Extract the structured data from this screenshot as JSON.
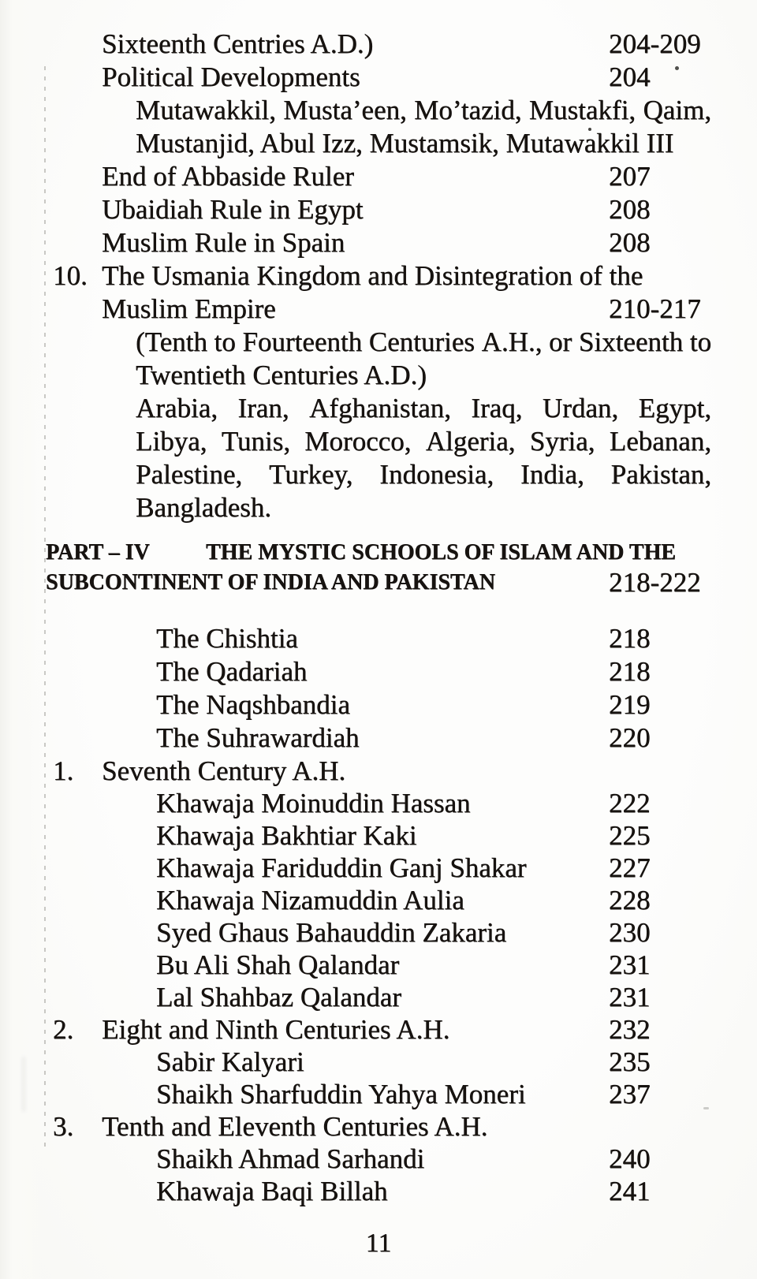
{
  "colors": {
    "ink": "#171310",
    "paper": "#fcfcfa",
    "margin_rule": "rgba(70,68,60,0.28)"
  },
  "footer": {
    "page_number": "11"
  },
  "toc": {
    "rows": [
      {
        "kind": "entry",
        "label": "Sixteenth Centries A.D.)",
        "page": "204-209"
      },
      {
        "kind": "entry",
        "label": "Political Developments",
        "page": "204"
      },
      {
        "kind": "wrap",
        "justify": true,
        "label": "Mutawakkil, Musta’een, Mo’tazid, Mustakfi, Qaim,"
      },
      {
        "kind": "wrap",
        "label": "Mustanjid, Abul Izz, Mustamsik, Mutawakkil III"
      },
      {
        "kind": "entry",
        "label": "End of Abbaside Ruler",
        "page": "207"
      },
      {
        "kind": "entry",
        "label": "Ubaidiah Rule in Egypt",
        "page": "208"
      },
      {
        "kind": "entry",
        "label": "Muslim Rule in Spain",
        "page": "208"
      },
      {
        "kind": "numbered",
        "num": "10.",
        "label": "The Usmania Kingdom and Disintegration of the"
      },
      {
        "kind": "entry",
        "label": "Muslim Empire",
        "page": "210-217"
      },
      {
        "kind": "wrap",
        "justify": true,
        "label": "(Tenth to Fourteenth Centuries A.H., or Sixteenth to"
      },
      {
        "kind": "wrap",
        "label": "Twentieth Centuries A.D.)"
      },
      {
        "kind": "wrap",
        "justify": true,
        "label": "Arabia, Iran, Afghanistan, Iraq, Urdan, Egypt,"
      },
      {
        "kind": "wrap",
        "justify": true,
        "label": "Libya, Tunis, Morocco, Algeria, Syria, Lebanan,"
      },
      {
        "kind": "wrap",
        "justify": true,
        "label": "Palestine, Turkey, Indonesia, India, Pakistan,"
      },
      {
        "kind": "wrap",
        "label": "Bangladesh."
      },
      {
        "kind": "gap",
        "h": 17
      },
      {
        "kind": "part-head",
        "num": "PART – IV",
        "label": "THE MYSTIC SCHOOLS OF ISLAM AND THE"
      },
      {
        "kind": "part-sub",
        "label": "SUBCONTINENT OF INDIA AND PAKISTAN",
        "page": "218-222"
      },
      {
        "kind": "gap",
        "h": 31
      },
      {
        "kind": "sub",
        "label": "The Chishtia",
        "page": "218"
      },
      {
        "kind": "sub",
        "label": "The Qadariah",
        "page": "218"
      },
      {
        "kind": "sub",
        "label": "The Naqshbandia",
        "page": "219"
      },
      {
        "kind": "sub",
        "label": "The Suhrawardiah",
        "page": "220"
      },
      {
        "kind": "numbered",
        "tight": true,
        "num": "1.",
        "label": "Seventh Century A.H."
      },
      {
        "kind": "sub",
        "tight": true,
        "label": "Khawaja Moinuddin Hassan",
        "page": "222"
      },
      {
        "kind": "sub",
        "tight": true,
        "label": "Khawaja Bakhtiar Kaki",
        "page": "225"
      },
      {
        "kind": "sub",
        "tight": true,
        "label": "Khawaja Fariduddin Ganj Shakar",
        "page": "227"
      },
      {
        "kind": "sub",
        "tight": true,
        "label": "Khawaja Nizamuddin Aulia",
        "page": "228"
      },
      {
        "kind": "sub",
        "tight": true,
        "label": "Syed Ghaus Bahauddin Zakaria",
        "page": "230"
      },
      {
        "kind": "sub",
        "tight": true,
        "label": "Bu Ali Shah Qalandar",
        "page": "231"
      },
      {
        "kind": "sub",
        "tight": true,
        "label": "Lal Shahbaz Qalandar",
        "page": "231"
      },
      {
        "kind": "numbered",
        "tight": true,
        "num": "2.",
        "label": "Eight and Ninth Centuries A.H.",
        "page": "232"
      },
      {
        "kind": "sub",
        "tight": true,
        "label": "Sabir Kalyari",
        "page": "235"
      },
      {
        "kind": "sub",
        "tight": true,
        "label": "Shaikh Sharfuddin Yahya Moneri",
        "page": "237"
      },
      {
        "kind": "numbered",
        "tight": true,
        "num": "3.",
        "label": "Tenth and Eleventh Centuries A.H."
      },
      {
        "kind": "sub",
        "tight": true,
        "label": "Shaikh Ahmad Sarhandi",
        "page": "240"
      },
      {
        "kind": "sub",
        "tight": true,
        "label": "Khawaja Baqi Billah",
        "page": "241"
      }
    ]
  }
}
